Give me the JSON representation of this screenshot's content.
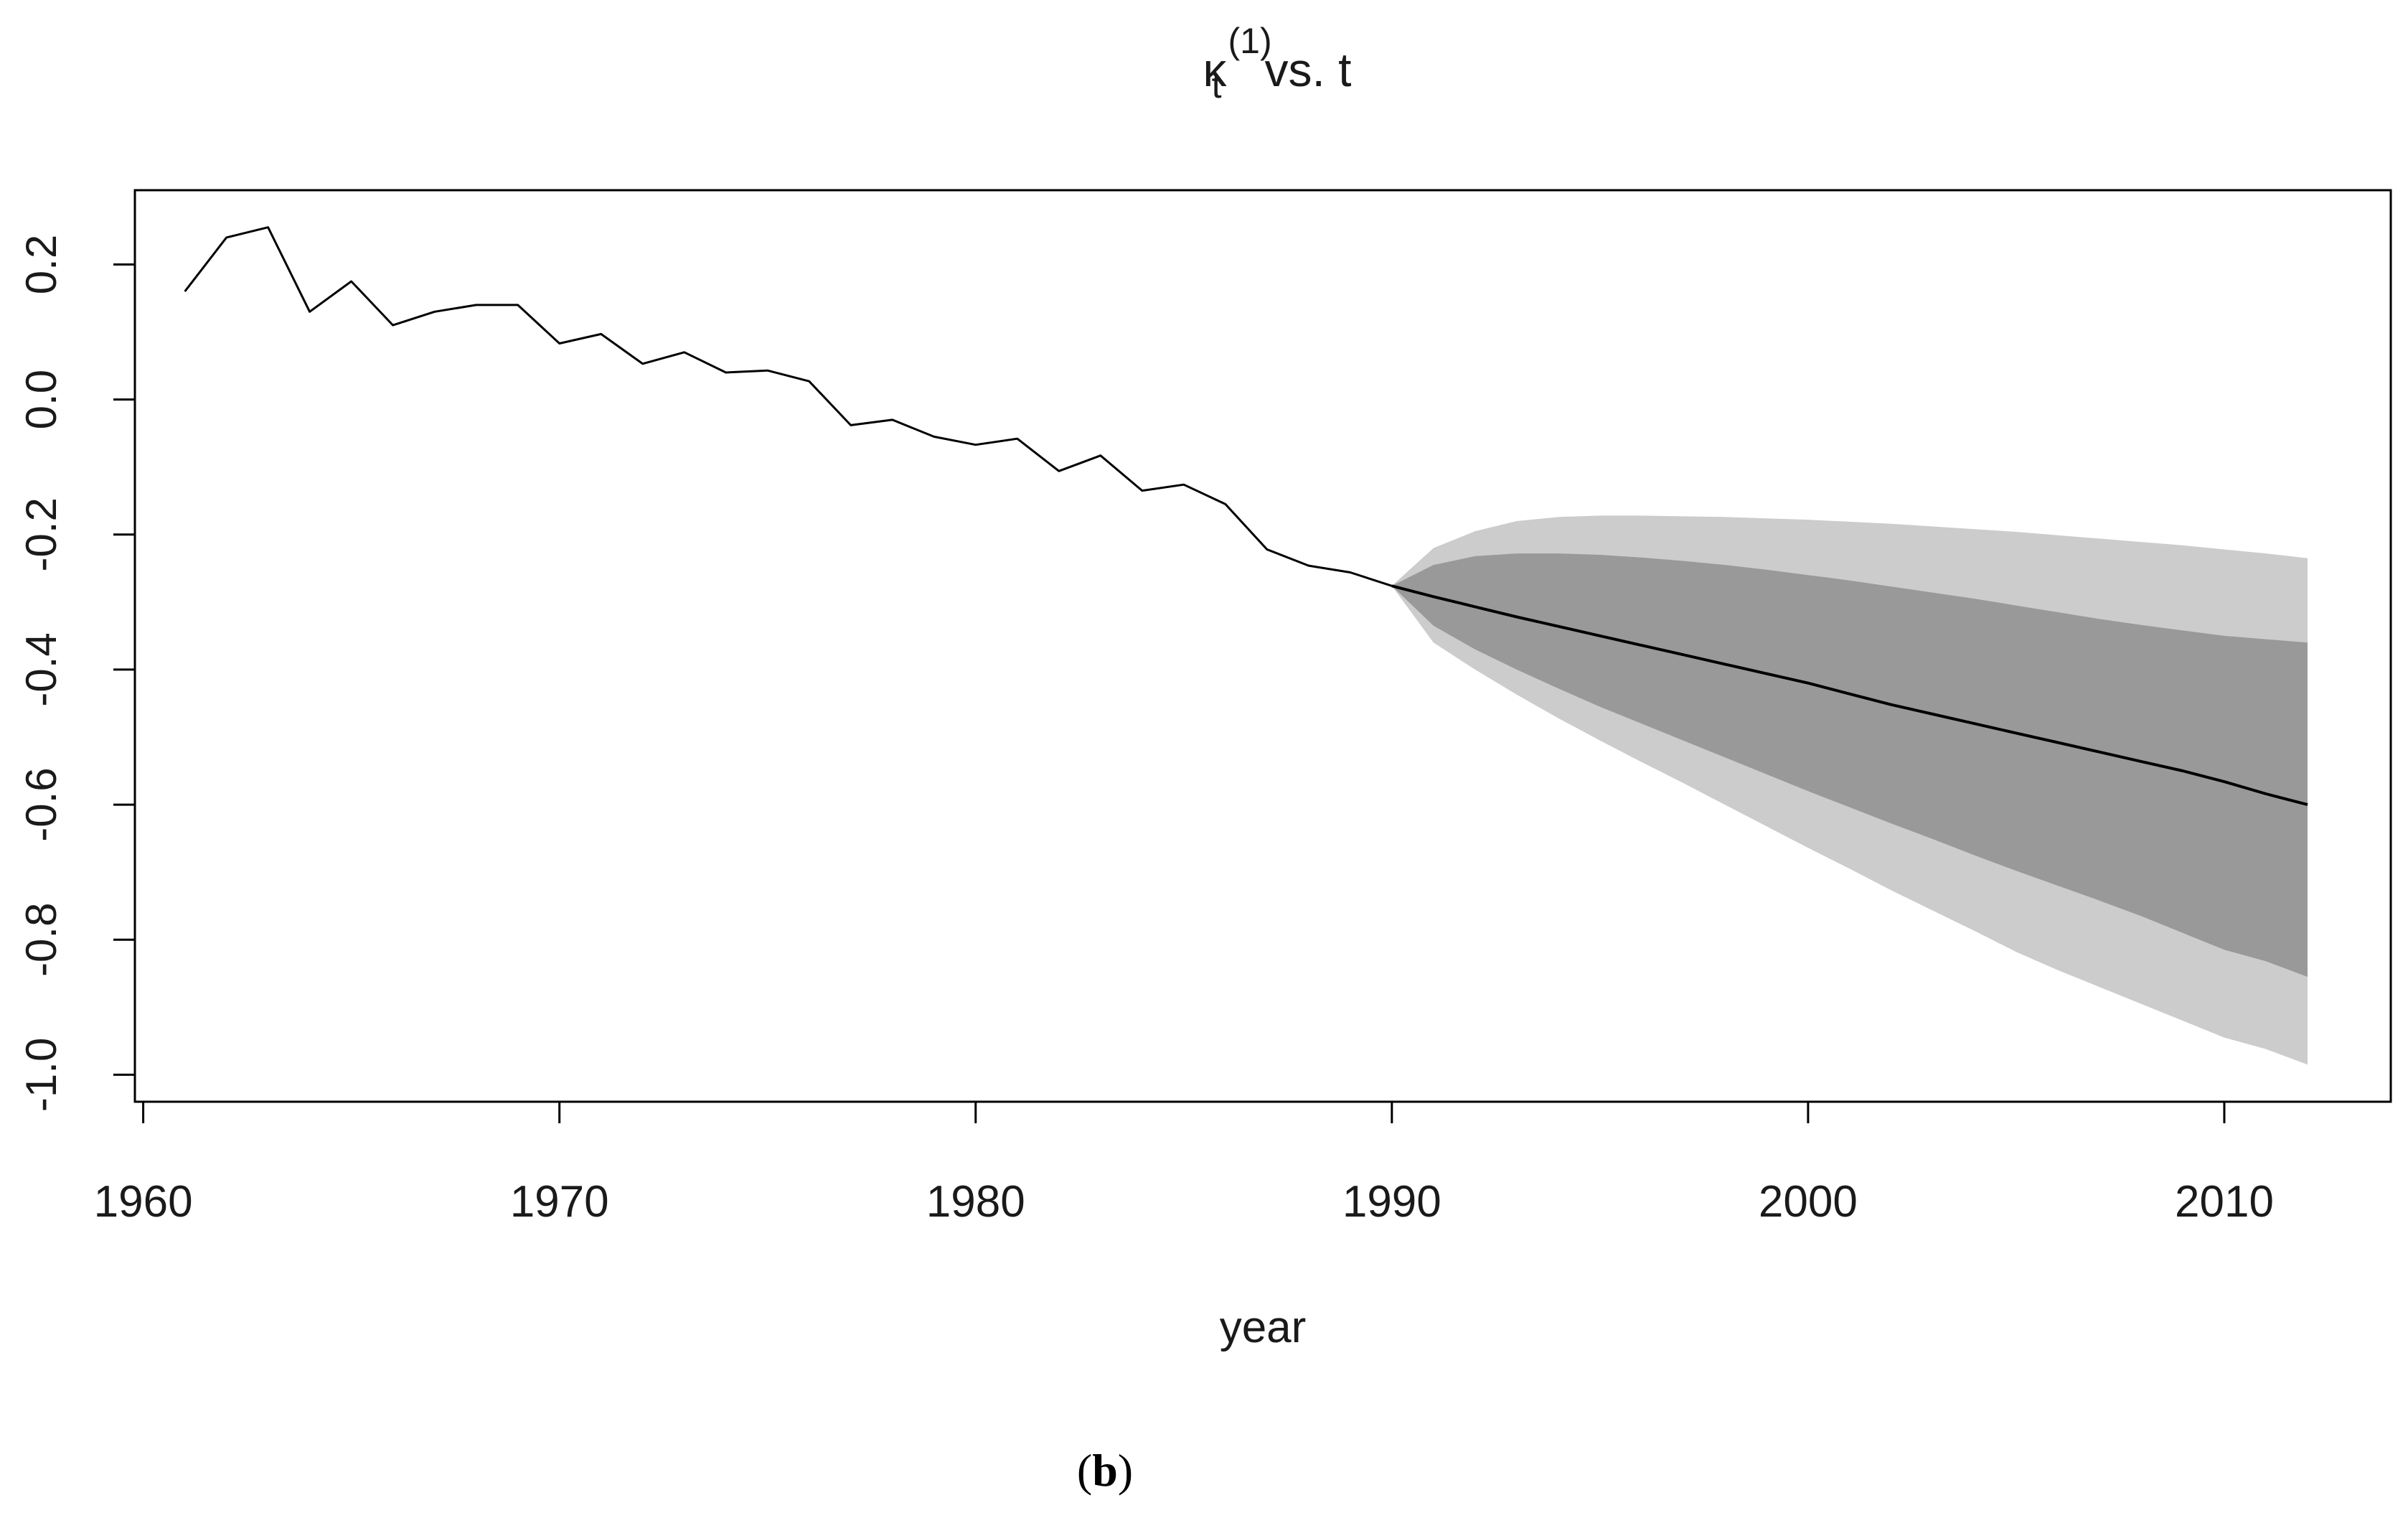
{
  "chart_data": {
    "type": "line",
    "title": {
      "main": "κ",
      "subscript": "t",
      "superscript": "(1)",
      "rest": "vs. t"
    },
    "xlabel": "year",
    "ylabel": "",
    "caption": {
      "open": "(",
      "letter": "b",
      "close": ")"
    },
    "xlim": [
      1959.8,
      2014.0
    ],
    "ylim": [
      -1.04,
      0.31
    ],
    "xticks": [
      {
        "value": 1960,
        "label": "1960"
      },
      {
        "value": 1970,
        "label": "1970"
      },
      {
        "value": 1980,
        "label": "1980"
      },
      {
        "value": 1990,
        "label": "1990"
      },
      {
        "value": 2000,
        "label": "2000"
      },
      {
        "value": 2010,
        "label": "2010"
      }
    ],
    "yticks": [
      {
        "value": 0.2,
        "label": "0.2"
      },
      {
        "value": 0.0,
        "label": "0.0"
      },
      {
        "value": -0.2,
        "label": "-0.2"
      },
      {
        "value": -0.4,
        "label": "-0.4"
      },
      {
        "value": -0.6,
        "label": "-0.6"
      },
      {
        "value": -0.8,
        "label": "-0.8"
      },
      {
        "value": -1.0,
        "label": "-1.0"
      }
    ],
    "grid": false,
    "colors": {
      "line": "#000000",
      "outer_band": "#cccccc",
      "inner_band": "#999999",
      "frame": "#000000"
    },
    "series": [
      {
        "role": "observed",
        "x": [
          1961,
          1962,
          1963,
          1964,
          1965,
          1966,
          1967,
          1968,
          1969,
          1970,
          1971,
          1972,
          1973,
          1974,
          1975,
          1976,
          1977,
          1978,
          1979,
          1980,
          1981,
          1982,
          1983,
          1984,
          1985,
          1986,
          1987,
          1988,
          1989,
          1990
        ],
        "values": [
          0.16,
          0.24,
          0.255,
          0.13,
          0.175,
          0.11,
          0.13,
          0.14,
          0.14,
          0.083,
          0.097,
          0.053,
          0.07,
          0.04,
          0.043,
          0.027,
          -0.038,
          -0.03,
          -0.055,
          -0.067,
          -0.058,
          -0.106,
          -0.083,
          -0.135,
          -0.126,
          -0.155,
          -0.222,
          -0.246,
          -0.256,
          -0.276
        ]
      },
      {
        "role": "forecast",
        "x": [
          1990,
          1991,
          1992,
          1993,
          1994,
          1995,
          1996,
          1997,
          1998,
          1999,
          2000,
          2001,
          2002,
          2003,
          2004,
          2005,
          2006,
          2007,
          2008,
          2009,
          2010,
          2011,
          2012
        ],
        "values": [
          -0.276,
          -0.292,
          -0.307,
          -0.322,
          -0.336,
          -0.35,
          -0.364,
          -0.378,
          -0.392,
          -0.406,
          -0.42,
          -0.436,
          -0.452,
          -0.466,
          -0.48,
          -0.494,
          -0.508,
          -0.522,
          -0.536,
          -0.55,
          -0.566,
          -0.584,
          -0.6
        ]
      }
    ],
    "bands": [
      {
        "level": "outer",
        "x": [
          1990,
          1991,
          1992,
          1993,
          1994,
          1995,
          1996,
          1997,
          1998,
          1999,
          2000,
          2001,
          2002,
          2003,
          2004,
          2005,
          2006,
          2007,
          2008,
          2009,
          2010,
          2011,
          2012
        ],
        "upper": [
          -0.276,
          -0.22,
          -0.195,
          -0.18,
          -0.174,
          -0.172,
          -0.172,
          -0.173,
          -0.174,
          -0.176,
          -0.178,
          -0.181,
          -0.184,
          -0.188,
          -0.192,
          -0.196,
          -0.201,
          -0.206,
          -0.211,
          -0.216,
          -0.222,
          -0.228,
          -0.235
        ],
        "lower": [
          -0.276,
          -0.36,
          -0.4,
          -0.437,
          -0.472,
          -0.505,
          -0.537,
          -0.568,
          -0.6,
          -0.632,
          -0.664,
          -0.695,
          -0.727,
          -0.757,
          -0.787,
          -0.818,
          -0.845,
          -0.87,
          -0.895,
          -0.92,
          -0.945,
          -0.962,
          -0.985
        ]
      },
      {
        "level": "inner",
        "x": [
          1990,
          1991,
          1992,
          1993,
          1994,
          1995,
          1996,
          1997,
          1998,
          1999,
          2000,
          2001,
          2002,
          2003,
          2004,
          2005,
          2006,
          2007,
          2008,
          2009,
          2010,
          2011,
          2012
        ],
        "upper": [
          -0.276,
          -0.245,
          -0.232,
          -0.228,
          -0.228,
          -0.23,
          -0.234,
          -0.239,
          -0.245,
          -0.252,
          -0.26,
          -0.268,
          -0.277,
          -0.286,
          -0.295,
          -0.305,
          -0.315,
          -0.325,
          -0.334,
          -0.342,
          -0.35,
          -0.355,
          -0.36
        ],
        "lower": [
          -0.276,
          -0.335,
          -0.37,
          -0.4,
          -0.428,
          -0.455,
          -0.48,
          -0.505,
          -0.53,
          -0.555,
          -0.58,
          -0.604,
          -0.628,
          -0.651,
          -0.675,
          -0.698,
          -0.72,
          -0.742,
          -0.765,
          -0.79,
          -0.815,
          -0.832,
          -0.855
        ]
      }
    ]
  }
}
